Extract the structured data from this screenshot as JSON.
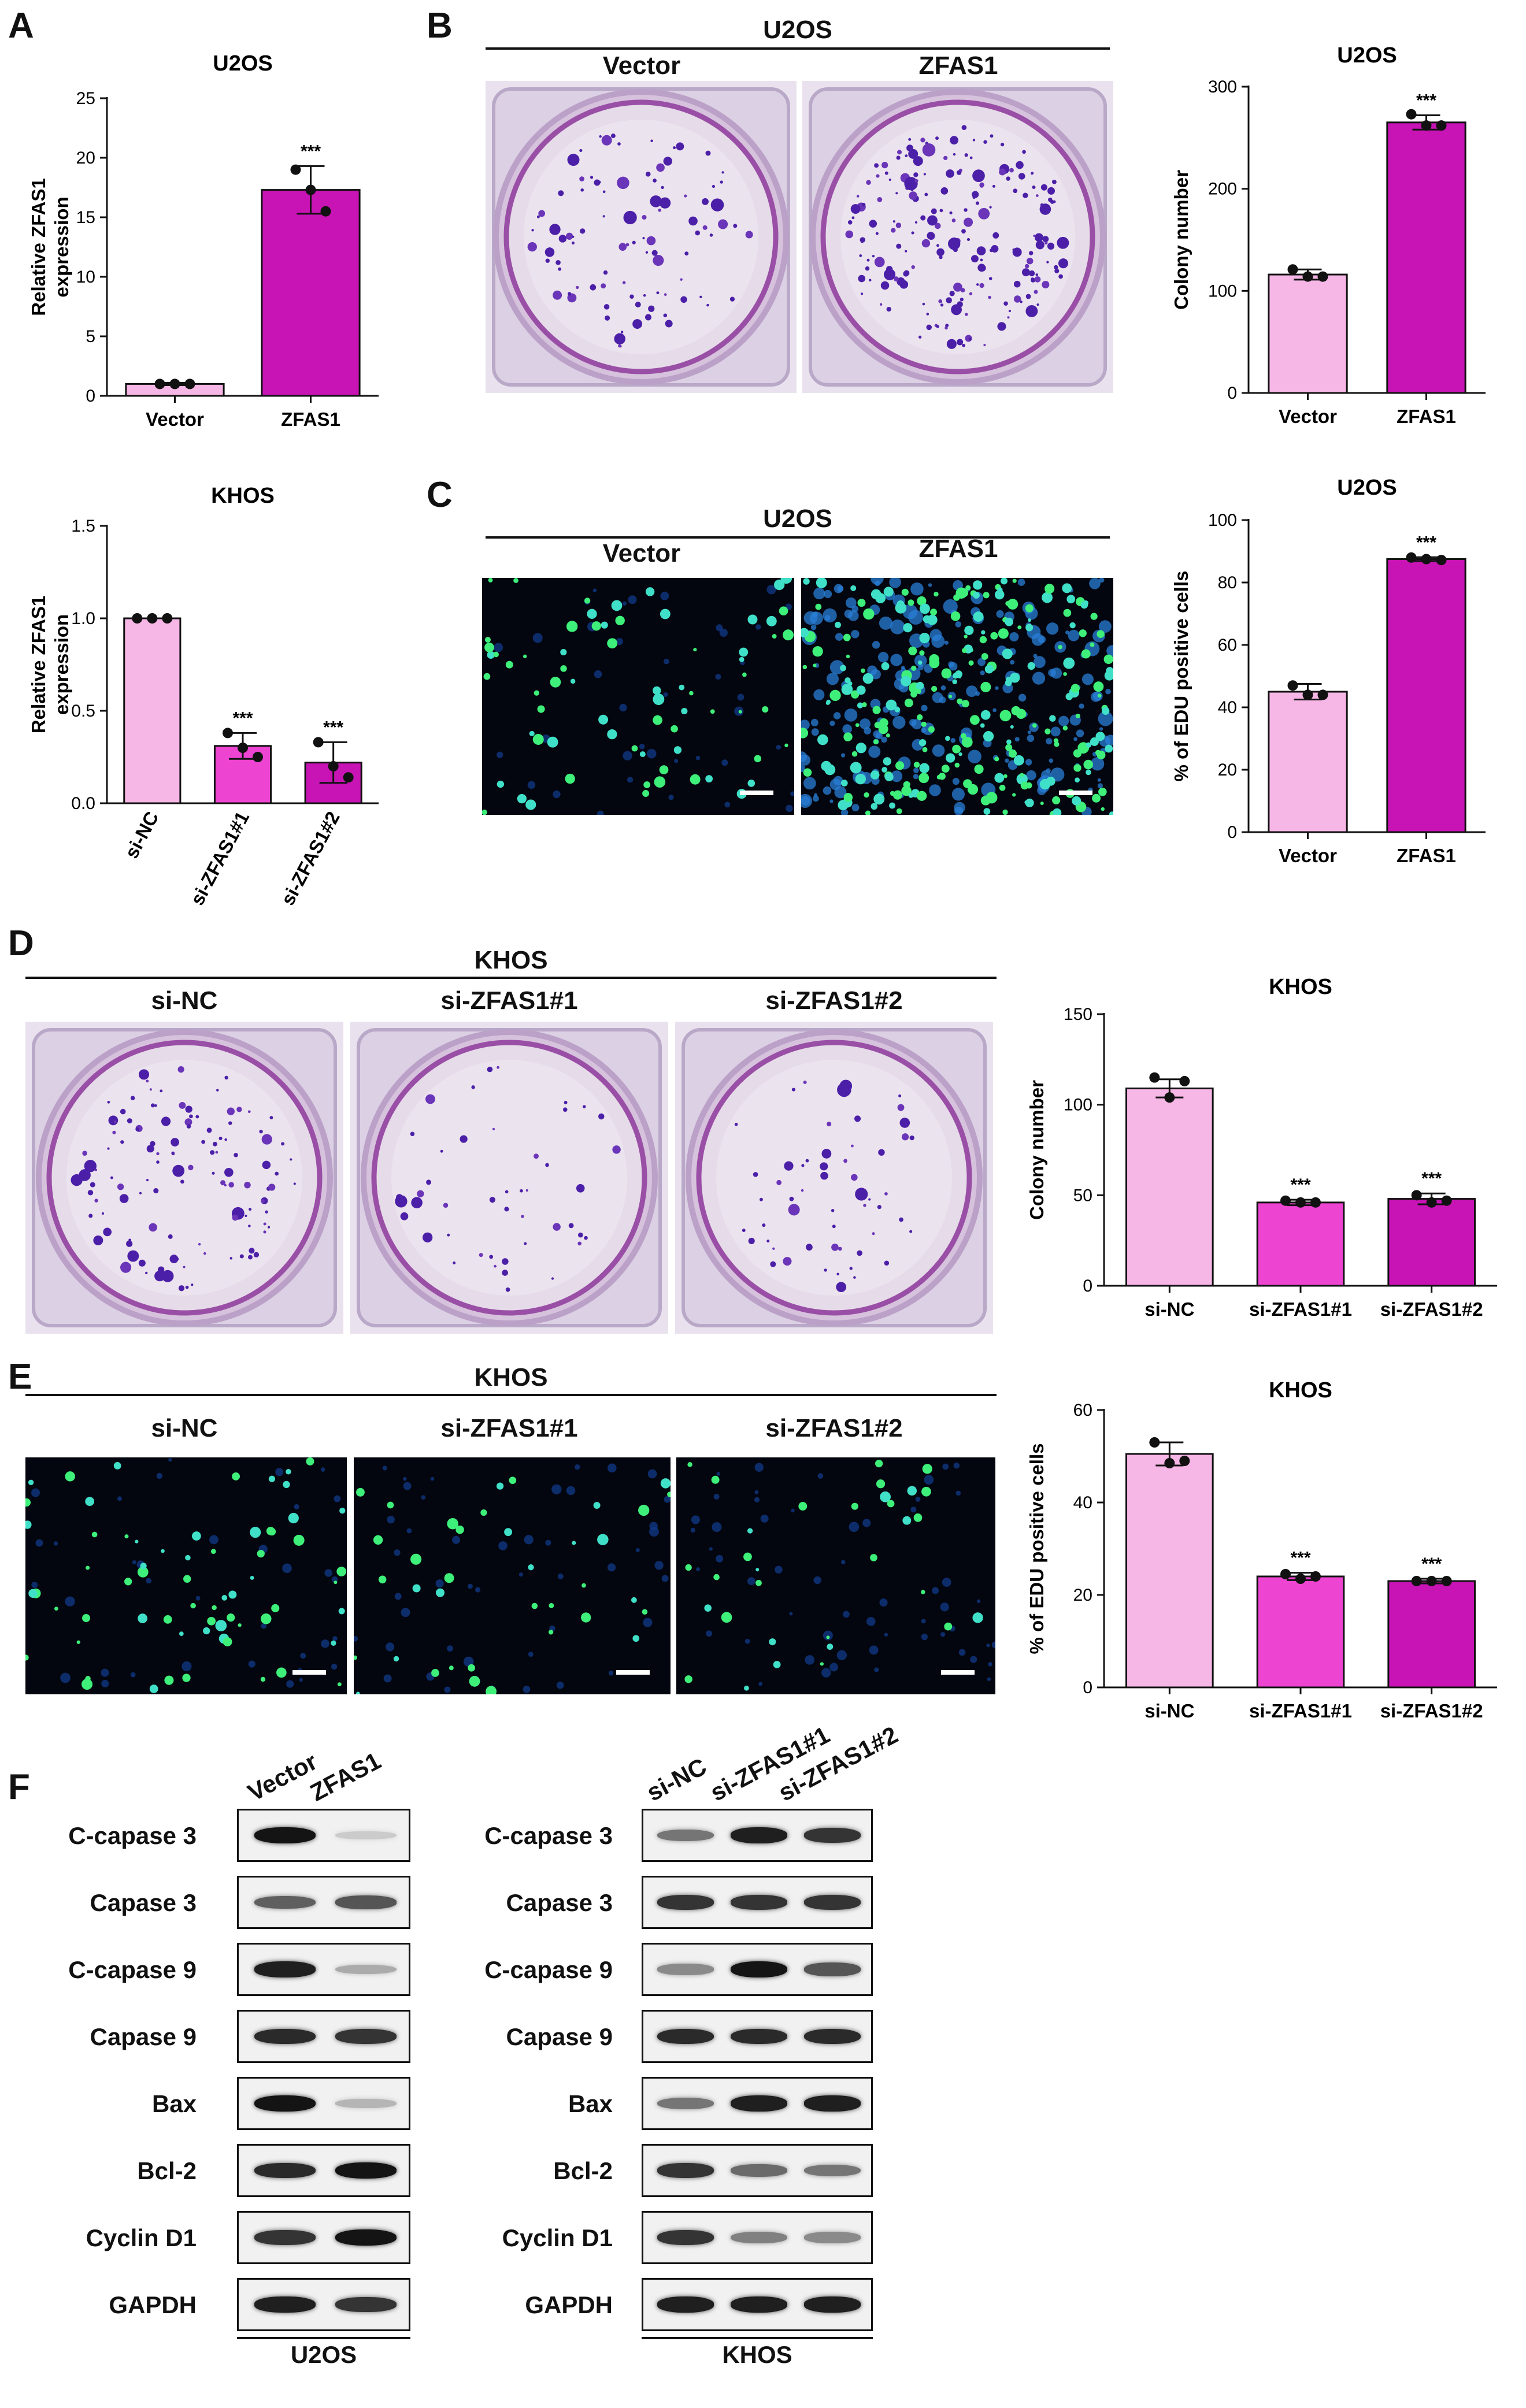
{
  "panels": {
    "A": "A",
    "B": "B",
    "C": "C",
    "D": "D",
    "E": "E",
    "F": "F"
  },
  "chart_data": [
    {
      "id": "A_top",
      "type": "bar",
      "title": "U2OS",
      "categories": [
        "Vector",
        "ZFAS1"
      ],
      "values": [
        1.0,
        17.3
      ],
      "errors": [
        0.1,
        2.0
      ],
      "points": [
        [
          1.0,
          1.0,
          1.0
        ],
        [
          19.0,
          17.3,
          15.5
        ]
      ],
      "significance": [
        "",
        "***"
      ],
      "ylabel": "Relative ZFAS1 expression",
      "ylim": [
        0,
        25
      ],
      "yticks": [
        0,
        5,
        10,
        15,
        20,
        25
      ],
      "colors": [
        "#f6b6e6",
        "#c814b4"
      ],
      "rotate_labels": false
    },
    {
      "id": "A_bottom",
      "type": "bar",
      "title": "KHOS",
      "categories": [
        "si-NC",
        "si-ZFAS1#1",
        "si-ZFAS1#2"
      ],
      "values": [
        1.0,
        0.31,
        0.22
      ],
      "errors": [
        0.0,
        0.07,
        0.11
      ],
      "points": [
        [
          1.0,
          1.0,
          1.0
        ],
        [
          0.38,
          0.3,
          0.25
        ],
        [
          0.33,
          0.2,
          0.14
        ]
      ],
      "significance": [
        "",
        "***",
        "***"
      ],
      "ylabel": "Relative ZFAS1 expression",
      "ylim": [
        0,
        1.5
      ],
      "yticks": [
        0.0,
        0.5,
        1.0,
        1.5
      ],
      "colors": [
        "#f6b6e6",
        "#ee44d2",
        "#c814b4"
      ],
      "rotate_labels": true
    },
    {
      "id": "B_bar",
      "type": "bar",
      "title": "U2OS",
      "categories": [
        "Vector",
        "ZFAS1"
      ],
      "values": [
        116,
        265
      ],
      "errors": [
        5,
        7
      ],
      "points": [
        [
          121,
          114,
          114
        ],
        [
          273,
          262,
          262
        ]
      ],
      "significance": [
        "",
        "***"
      ],
      "ylabel": "Colony number",
      "ylim": [
        0,
        300
      ],
      "yticks": [
        0,
        100,
        200,
        300
      ],
      "colors": [
        "#f6b6e6",
        "#c814b4"
      ],
      "rotate_labels": false
    },
    {
      "id": "C_bar",
      "type": "bar",
      "title": "U2OS",
      "categories": [
        "Vector",
        "ZFAS1"
      ],
      "values": [
        45,
        87.5
      ],
      "errors": [
        2.5,
        0.6
      ],
      "points": [
        [
          47,
          44,
          44
        ],
        [
          88,
          87.5,
          87.2
        ]
      ],
      "significance": [
        "",
        "***"
      ],
      "ylabel": "% of EDU positive cells",
      "ylim": [
        0,
        100
      ],
      "yticks": [
        0,
        20,
        40,
        60,
        80,
        100
      ],
      "colors": [
        "#f6b6e6",
        "#c814b4"
      ],
      "rotate_labels": false
    },
    {
      "id": "D_bar",
      "type": "bar",
      "title": "KHOS",
      "categories": [
        "si-NC",
        "si-ZFAS1#1",
        "si-ZFAS1#2"
      ],
      "values": [
        109,
        46,
        48
      ],
      "errors": [
        5,
        1.5,
        3
      ],
      "points": [
        [
          115,
          104,
          113
        ],
        [
          47,
          46,
          46
        ],
        [
          50,
          46,
          47
        ]
      ],
      "significance": [
        "",
        "***",
        "***"
      ],
      "ylabel": "Colony number",
      "ylim": [
        0,
        150
      ],
      "yticks": [
        0,
        50,
        100,
        150
      ],
      "colors": [
        "#f6b6e6",
        "#ee44d2",
        "#c814b4"
      ],
      "rotate_labels": false
    },
    {
      "id": "E_bar",
      "type": "bar",
      "title": "KHOS",
      "categories": [
        "si-NC",
        "si-ZFAS1#1",
        "si-ZFAS1#2"
      ],
      "values": [
        50.5,
        24,
        23
      ],
      "errors": [
        2.5,
        0.8,
        0.5
      ],
      "points": [
        [
          53,
          48.5,
          49
        ],
        [
          24.5,
          23.5,
          24
        ],
        [
          23,
          23,
          23
        ]
      ],
      "significance": [
        "",
        "***",
        "***"
      ],
      "ylabel": "% of EDU positive cells",
      "ylim": [
        0,
        60
      ],
      "yticks": [
        0,
        20,
        40,
        60
      ],
      "colors": [
        "#f6b6e6",
        "#ee44d2",
        "#c814b4"
      ],
      "rotate_labels": false
    }
  ],
  "panel_B": {
    "cell_line": "U2OS",
    "groups": [
      "Vector",
      "ZFAS1"
    ]
  },
  "panel_C": {
    "cell_line": "U2OS",
    "groups": [
      "Vector",
      "ZFAS1"
    ]
  },
  "panel_D": {
    "cell_line": "KHOS",
    "groups": [
      "si-NC",
      "si-ZFAS1#1",
      "si-ZFAS1#2"
    ]
  },
  "panel_E": {
    "cell_line": "KHOS",
    "groups": [
      "si-NC",
      "si-ZFAS1#1",
      "si-ZFAS1#2"
    ]
  },
  "western": {
    "proteins": [
      "C-capase 3",
      "Capase 3",
      "C-capase 9",
      "Capase 9",
      "Bax",
      "Bcl-2",
      "Cyclin D1",
      "GAPDH"
    ],
    "left": {
      "cell_line": "U2OS",
      "lanes": [
        "Vector",
        "ZFAS1"
      ],
      "intensities": [
        [
          1.0,
          0.15
        ],
        [
          0.65,
          0.7
        ],
        [
          0.95,
          0.3
        ],
        [
          0.9,
          0.85
        ],
        [
          1.0,
          0.25
        ],
        [
          0.9,
          1.0
        ],
        [
          0.85,
          1.0
        ],
        [
          0.95,
          0.85
        ]
      ]
    },
    "right": {
      "cell_line": "KHOS",
      "lanes": [
        "si-NC",
        "si-ZFAS1#1",
        "si-ZFAS1#2"
      ],
      "intensities": [
        [
          0.55,
          0.95,
          0.85
        ],
        [
          0.85,
          0.85,
          0.85
        ],
        [
          0.45,
          1.0,
          0.7
        ],
        [
          0.9,
          0.9,
          0.9
        ],
        [
          0.55,
          0.95,
          0.95
        ],
        [
          0.85,
          0.6,
          0.55
        ],
        [
          0.85,
          0.5,
          0.45
        ],
        [
          0.95,
          0.95,
          0.95
        ]
      ]
    }
  }
}
